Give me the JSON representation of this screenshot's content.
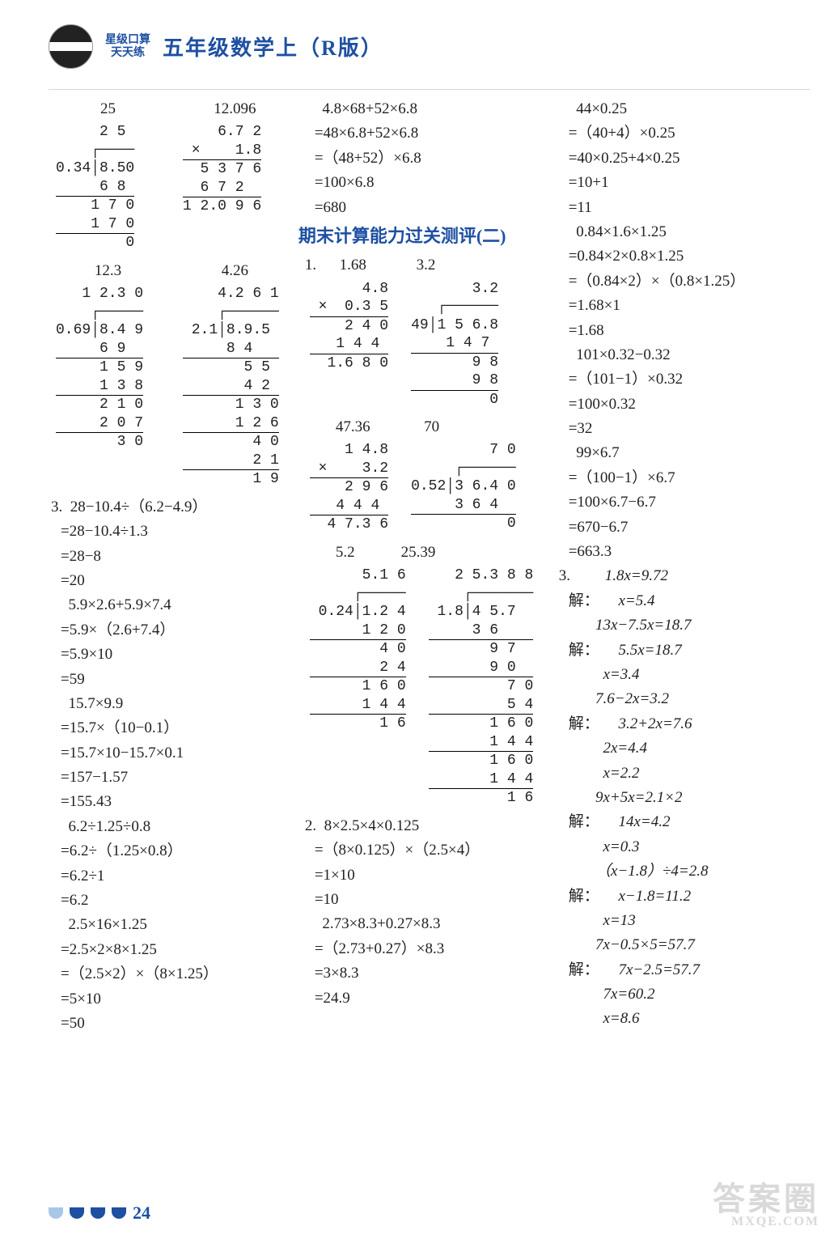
{
  "header": {
    "bubble_l1": "星级口算",
    "bubble_l2": "天天练",
    "title": "五年级数学上（R版）"
  },
  "page_number": "24",
  "watermark_main": "答案圈",
  "watermark_sub": "MXQE.COM",
  "col1": {
    "pair1": {
      "a_ans": "25",
      "b_ans": "12.096"
    },
    "ldiv1": [
      "    2 5",
      "0.3 4)8.5 0",
      "    6 8",
      "   ─────",
      "    1 7 0",
      "    1 7 0",
      "   ─────",
      "        0"
    ],
    "mul1": [
      "    6.7 2",
      "×     1.8",
      "────────",
      "   5 3 7 6",
      "  6 7 2",
      "────────",
      " 1 2.0 9 6"
    ],
    "pair2": {
      "a_ans": "12.3",
      "b_ans": "4.26"
    },
    "ldiv2": [
      "   1 2.3 0",
      "0.6 9)8.4 9",
      "    6 9",
      "   ─────",
      "    1 5 9",
      "    1 3 8",
      "   ─────",
      "     2 1 0",
      "     2 0 7",
      "    ─────",
      "       3 0"
    ],
    "ldiv3": [
      "    4.2 6 1",
      "2.1)8.9.5",
      "   8 4",
      "  ─────",
      "    5 5",
      "    4 2",
      "   ─────",
      "    1 3 0",
      "    1 2 6",
      "   ─────",
      "      4 0",
      "      2 1",
      "     ────",
      "      1 9"
    ],
    "p3_label": "3.",
    "p3_eqs": [
      "28−10.4÷（6.2−4.9）",
      "=28−10.4÷1.3",
      "=28−8",
      "=20",
      "  5.9×2.6+5.9×7.4",
      "=5.9×（2.6+7.4）",
      "=5.9×10",
      "=59",
      "  15.7×9.9",
      "=15.7×（10−0.1）",
      "=15.7×10−15.7×0.1",
      "=157−1.57",
      "=155.43",
      "  6.2÷1.25÷0.8",
      "=6.2÷（1.25×0.8）",
      "=6.2÷1",
      "=6.2",
      "  2.5×16×1.25",
      "=2.5×2×8×1.25",
      "=（2.5×2）×（8×1.25）",
      "=5×10",
      "=50"
    ]
  },
  "col2": {
    "top": [
      "  4.8×68+52×6.8",
      "=48×6.8+52×6.8",
      "=（48+52）×6.8",
      "=100×6.8",
      "=680"
    ],
    "section": "期末计算能力过关测评(二)",
    "p1_label": "1.",
    "pair1": {
      "a_ans": "1.68",
      "b_ans": "3.2"
    },
    "mul_a": [
      "     4.8",
      "×   0.3 5",
      "────────",
      "    2 4 0",
      "  1 4 4",
      "────────",
      "  1.6 8 0"
    ],
    "ldiv_a": [
      "       3.2",
      "4 9)1 5 6.8",
      "    1 4 7",
      "   ──────",
      "       9 8",
      "       9 8",
      "      ────",
      "         0"
    ],
    "pair2": {
      "a_ans": "47.36",
      "b_ans": "70"
    },
    "mul_b": [
      "   1 4.8",
      "×    3.2",
      "───────",
      "    2 9 6",
      "  4 4 4",
      "───────",
      "  4 7.3 6"
    ],
    "ldiv_b": [
      "        7 0",
      "0.5 2)3 6.4 0",
      "     3 6 4",
      "    ──────",
      "          0"
    ],
    "pair3": {
      "a_ans": "5.2",
      "b_ans": "25.39"
    },
    "ldiv_c": [
      "     5.1 6",
      "0.2 4)1.2 4",
      "    1 2 0",
      "   ─────",
      "       4 0",
      "       2 4",
      "      ────",
      "      1 6 0",
      "      1 4 4",
      "     ─────",
      "        1 6"
    ],
    "ldiv_d": [
      "   2 5.3 8 8",
      "1.8)4 5.7",
      "   3 6",
      "  ────",
      "    9 7",
      "    9 0",
      "   ────",
      "     7 0",
      "     5 4",
      "    ────",
      "    1 6 0",
      "    1 4 4",
      "   ─────",
      "     1 6 0",
      "     1 4 4",
      "    ─────",
      "       1 6"
    ],
    "p2_label": "2.",
    "p2_eqs": [
      "8×2.5×4×0.125",
      "=（8×0.125）×（2.5×4）",
      "=1×10",
      "=10",
      "  2.73×8.3+0.27×8.3",
      "=（2.73+0.27）×8.3",
      "=3×8.3",
      "=24.9"
    ]
  },
  "col3": {
    "top": [
      "  44×0.25",
      "=（40+4）×0.25",
      "=40×0.25+4×0.25",
      "=10+1",
      "=11",
      "  0.84×1.6×1.25",
      "=0.84×2×0.8×1.25",
      "=（0.84×2）×（0.8×1.25）",
      "=1.68×1",
      "=1.68",
      "  101×0.32−0.32",
      "=（101−1）×0.32",
      "=100×0.32",
      "=32",
      "  99×6.7",
      "=（100−1）×6.7",
      "=100×6.7−6.7",
      "=670−6.7",
      "=663.3"
    ],
    "p3_label": "3.",
    "solve_label": "解：",
    "eqs": [
      {
        "q": "1.8x=9.72",
        "s": [
          "x=5.4"
        ]
      },
      {
        "q": "13x−7.5x=18.7",
        "s": [
          "5.5x=18.7",
          "x=3.4"
        ]
      },
      {
        "q": "7.6−2x=3.2",
        "s": [
          "3.2+2x=7.6",
          "2x=4.4",
          "x=2.2"
        ]
      },
      {
        "q": "9x+5x=2.1×2",
        "s": [
          "14x=4.2",
          "x=0.3"
        ]
      },
      {
        "q": "（x−1.8）÷4=2.8",
        "s": [
          "x−1.8=11.2",
          "x=13"
        ]
      },
      {
        "q": "7x−0.5×5=57.7",
        "s": [
          "7x−2.5=57.7",
          "7x=60.2",
          "x=8.6"
        ]
      }
    ]
  }
}
